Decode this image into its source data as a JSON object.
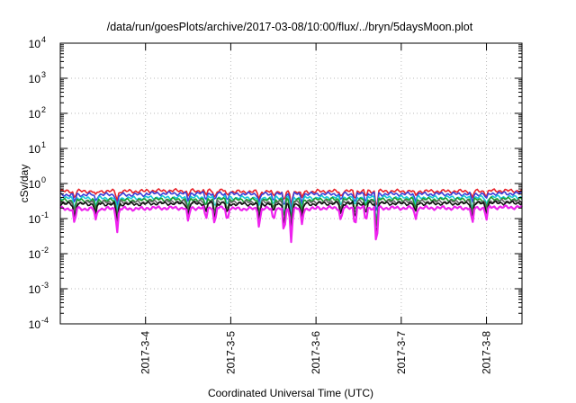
{
  "chart_data": {
    "type": "line",
    "title": "/data/run/goesPlots/archive/2017-03-08/10:00/flux/../bryn/5daysMoon.plot",
    "xlabel": "Coordinated Universal Time (UTC)",
    "ylabel": "cSv/day",
    "yscale": "log",
    "ylim": [
      0.0001,
      10000
    ],
    "xlim": [
      "2017-03-03T00:00",
      "2017-03-08T10:00"
    ],
    "grid": true,
    "y_ticks": [
      {
        "base": "10",
        "exp": "-4",
        "value": 0.0001
      },
      {
        "base": "10",
        "exp": "-3",
        "value": 0.001
      },
      {
        "base": "10",
        "exp": "-2",
        "value": 0.01
      },
      {
        "base": "10",
        "exp": "-1",
        "value": 0.1
      },
      {
        "base": "10",
        "exp": "0",
        "value": 1
      },
      {
        "base": "10",
        "exp": "1",
        "value": 10
      },
      {
        "base": "10",
        "exp": "2",
        "value": 100
      },
      {
        "base": "10",
        "exp": "3",
        "value": 1000
      },
      {
        "base": "10",
        "exp": "4",
        "value": 10000
      }
    ],
    "x_ticks": [
      {
        "label": "2017-3-4",
        "value": "2017-03-04"
      },
      {
        "label": "2017-3-5",
        "value": "2017-03-05"
      },
      {
        "label": "2017-3-6",
        "value": "2017-03-06"
      },
      {
        "label": "2017-3-7",
        "value": "2017-03-07"
      },
      {
        "label": "2017-3-8",
        "value": "2017-03-08"
      }
    ],
    "dips": [
      {
        "x": "2017-03-03T04:00",
        "depth": 0.4
      },
      {
        "x": "2017-03-03T10:00",
        "depth": 0.3
      },
      {
        "x": "2017-03-03T16:00",
        "depth": 0.55
      },
      {
        "x": "2017-03-04T12:00",
        "depth": 0.35
      },
      {
        "x": "2017-03-04T17:00",
        "depth": 0.3
      },
      {
        "x": "2017-03-04T19:30",
        "depth": 0.45
      },
      {
        "x": "2017-03-04T23:00",
        "depth": 0.35
      },
      {
        "x": "2017-03-05T08:00",
        "depth": 0.45
      },
      {
        "x": "2017-03-05T12:00",
        "depth": 0.3
      },
      {
        "x": "2017-03-05T15:00",
        "depth": 0.7
      },
      {
        "x": "2017-03-05T17:00",
        "depth": 0.75
      },
      {
        "x": "2017-03-05T20:00",
        "depth": 0.4
      },
      {
        "x": "2017-03-06T07:00",
        "depth": 0.35
      },
      {
        "x": "2017-03-06T11:00",
        "depth": 0.45
      },
      {
        "x": "2017-03-06T14:00",
        "depth": 0.35
      },
      {
        "x": "2017-03-06T17:00",
        "depth": 1.05
      },
      {
        "x": "2017-03-07T04:00",
        "depth": 0.3
      },
      {
        "x": "2017-03-07T20:00",
        "depth": 0.45
      },
      {
        "x": "2017-03-08T00:00",
        "depth": 0.3
      }
    ],
    "series": [
      {
        "color": "#e8222a",
        "baseline": 0.6,
        "level_by_day": [
          0.6,
          0.62,
          0.58,
          0.6,
          0.6,
          0.62
        ]
      },
      {
        "color": "#3a3fd8",
        "baseline": 0.5,
        "level_by_day": [
          0.48,
          0.52,
          0.5,
          0.5,
          0.5,
          0.52
        ]
      },
      {
        "color": "#17c7d8",
        "baseline": 0.4,
        "level_by_day": [
          0.38,
          0.4,
          0.39,
          0.4,
          0.4,
          0.41
        ]
      },
      {
        "color": "#1c9c2e",
        "baseline": 0.35,
        "level_by_day": [
          0.33,
          0.35,
          0.34,
          0.35,
          0.35,
          0.36
        ]
      },
      {
        "color": "#666666",
        "baseline": 0.3,
        "level_by_day": [
          0.29,
          0.3,
          0.29,
          0.3,
          0.3,
          0.31
        ]
      },
      {
        "color": "#111111",
        "baseline": 0.27,
        "level_by_day": [
          0.26,
          0.27,
          0.26,
          0.27,
          0.27,
          0.28
        ]
      },
      {
        "color": "#ee22ee",
        "baseline": 0.2,
        "level_by_day": [
          0.19,
          0.2,
          0.19,
          0.2,
          0.2,
          0.21
        ]
      }
    ]
  }
}
